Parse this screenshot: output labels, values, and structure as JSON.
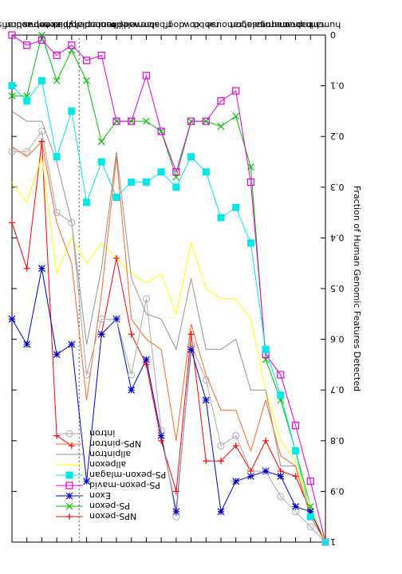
{
  "chart_data": {
    "type": "line",
    "orientation": "rotated-180",
    "ylabel": "Fraction of Human Genomic Features Detected",
    "xlabel": "",
    "ylim": [
      0,
      1
    ],
    "yticks": [
      0,
      0.1,
      0.2,
      0.3,
      0.4,
      0.5,
      0.6,
      0.7,
      0.8,
      0.9,
      1
    ],
    "grid": false,
    "legend_position": "top-right",
    "annotations": [
      {
        "type": "vertical-dashed-line",
        "between": [
          "platypus",
          "monodelphis"
        ]
      }
    ],
    "categories": [
      "human",
      "chimp",
      "baboon",
      "macaque",
      "marmoset",
      "galago",
      "rat",
      "mouse",
      "rabbit",
      "cow",
      "dog",
      "rfbat",
      "shrew",
      "armadillo",
      "elephant",
      "tenrec",
      "monodelphis",
      "platypus",
      "chicken",
      "xenopus",
      "tetraodon",
      "zebrafish"
    ],
    "series": [
      {
        "name": "NPS-pexon",
        "color": "#ff0000",
        "marker": "plus",
        "values": [
          1,
          0.94,
          0.87,
          0.86,
          0.8,
          0.86,
          0.81,
          0.84,
          0.84,
          0.59,
          0.9,
          0.8,
          0.65,
          0.59,
          0.44,
          0.59,
          null,
          0.81,
          0.79,
          0.21,
          0.46,
          0.37
        ]
      },
      {
        "name": "PS-pexon",
        "color": "#00c000",
        "marker": "x",
        "values": [
          1,
          0.93,
          0.82,
          0.72,
          0.64,
          0.26,
          0.16,
          0.18,
          0.17,
          0.17,
          0.28,
          0.19,
          0.17,
          0.17,
          0.17,
          0.21,
          0.09,
          0.03,
          0.09,
          0.0,
          0.12,
          0.12
        ]
      },
      {
        "name": "Exon",
        "color": "#0000cc",
        "marker": "star",
        "values": [
          1,
          0.94,
          0.93,
          0.87,
          0.86,
          0.87,
          0.88,
          0.94,
          0.72,
          0.62,
          0.94,
          0.79,
          0.64,
          0.7,
          0.56,
          0.59,
          0.88,
          0.61,
          0.63,
          0.46,
          0.61,
          0.56
        ]
      },
      {
        "name": "PS-pexon-mavid",
        "color": "#e000e0",
        "marker": "box",
        "values": [
          1,
          0.88,
          0.77,
          0.67,
          0.63,
          0.29,
          0.11,
          0.13,
          0.17,
          0.17,
          0.27,
          0.19,
          0.08,
          0.17,
          0.17,
          0.04,
          0.05,
          0.02,
          0.04,
          0.01,
          0.02,
          0.0
        ]
      },
      {
        "name": "PS-pexon-mlagan",
        "color": "#00e8e8",
        "marker": "filled-box",
        "values": [
          1,
          0.95,
          0.82,
          0.71,
          0.62,
          0.41,
          0.34,
          0.36,
          0.27,
          0.24,
          0.3,
          0.27,
          0.29,
          0.29,
          0.32,
          0.25,
          0.33,
          0.15,
          0.24,
          0.09,
          0.13,
          0.1
        ]
      },
      {
        "name": "allpexon",
        "color": "#ffff00",
        "marker": "none",
        "values": [
          1,
          0.93,
          0.84,
          0.8,
          0.7,
          0.56,
          0.52,
          0.52,
          0.5,
          0.41,
          0.55,
          0.47,
          0.49,
          0.47,
          0.44,
          0.41,
          0.45,
          0.4,
          0.47,
          0.24,
          0.33,
          0.29
        ]
      },
      {
        "name": "allpintron",
        "color": "#909090",
        "marker": "none",
        "values": [
          1,
          0.95,
          0.85,
          0.85,
          0.7,
          0.7,
          0.6,
          0.62,
          0.62,
          0.48,
          0.62,
          0.56,
          0.55,
          0.48,
          0.23,
          0.46,
          0.61,
          0.37,
          0.25,
          0.17,
          0.17,
          0.15
        ]
      },
      {
        "name": "NPS-pintron",
        "color": "#ff6622",
        "marker": "none",
        "values": [
          1,
          0.95,
          0.85,
          0.83,
          0.72,
          0.82,
          0.74,
          0.74,
          0.67,
          0.57,
          0.8,
          0.62,
          0.6,
          0.56,
          0.24,
          0.51,
          0.72,
          0.45,
          0.37,
          0.21,
          0.24,
          0.22
        ]
      },
      {
        "name": "intron",
        "color": "#aaaaaa",
        "marker": "circle",
        "values": [
          1,
          0.97,
          0.94,
          0.91,
          0.86,
          0.86,
          0.79,
          0.81,
          0.68,
          0.61,
          0.95,
          0.78,
          0.52,
          0.67,
          0.56,
          0.56,
          0.67,
          0.37,
          0.35,
          0.19,
          0.23,
          0.23
        ]
      }
    ]
  }
}
